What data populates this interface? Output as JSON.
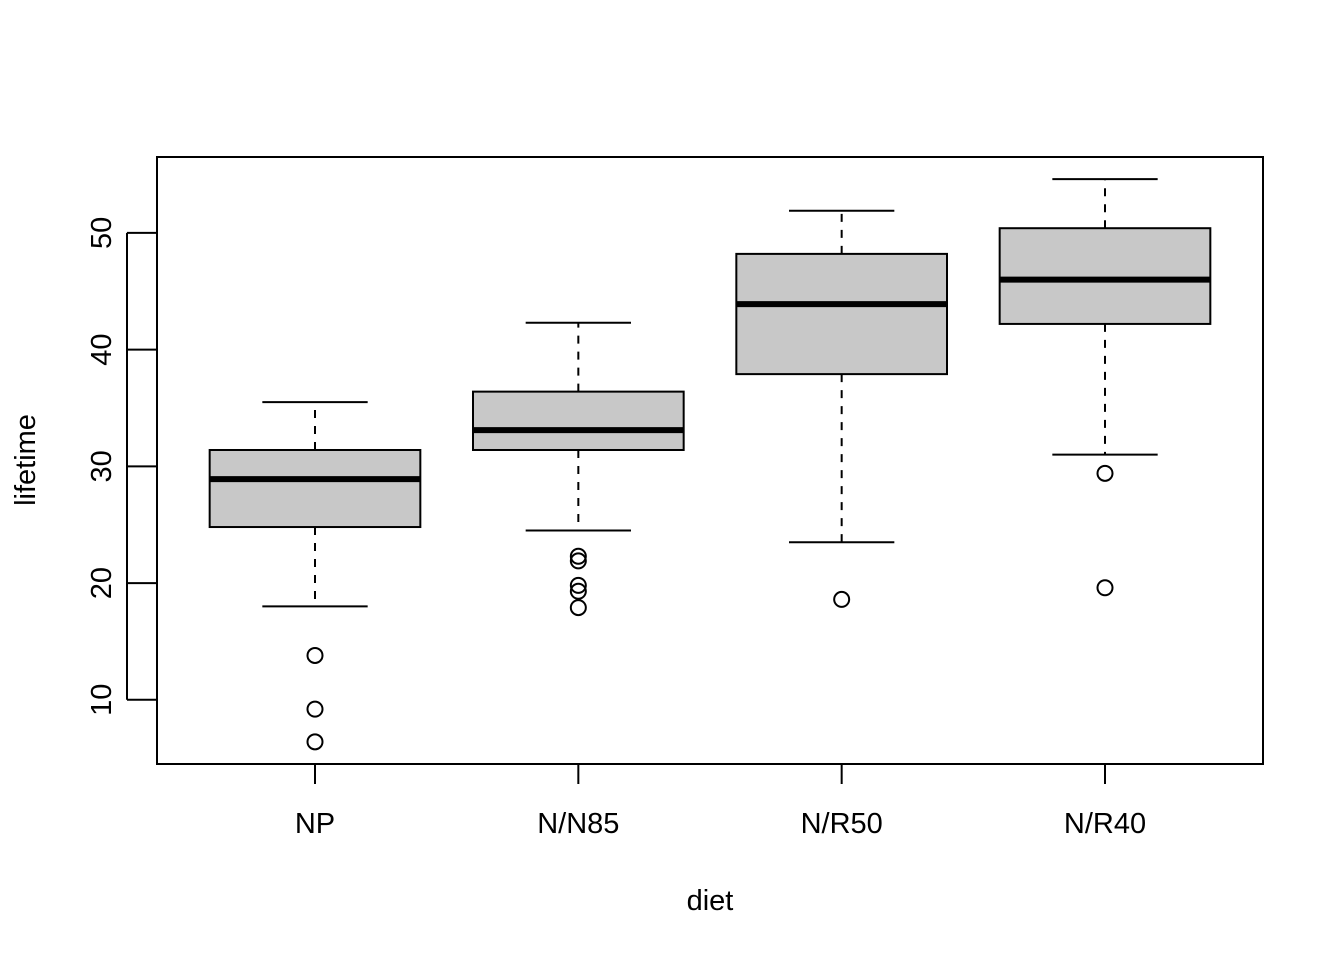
{
  "chart_data": {
    "type": "boxplot",
    "xlabel": "diet",
    "ylabel": "lifetime",
    "title": "",
    "ylim": [
      4.5,
      56.5
    ],
    "yticks": [
      10,
      20,
      30,
      40,
      50
    ],
    "categories": [
      "NP",
      "N/N85",
      "N/R50",
      "N/R40"
    ],
    "box_fill": "#c8c8c8",
    "boxes": [
      {
        "category": "NP",
        "whisker_low": 18.0,
        "q1": 24.8,
        "median": 28.9,
        "q3": 31.4,
        "whisker_high": 35.5,
        "outliers": [
          13.8,
          9.2,
          6.4
        ]
      },
      {
        "category": "N/N85",
        "whisker_low": 24.5,
        "q1": 31.4,
        "median": 33.1,
        "q3": 36.4,
        "whisker_high": 42.3,
        "outliers": [
          22.3,
          21.9,
          19.8,
          19.3,
          17.9
        ]
      },
      {
        "category": "N/R50",
        "whisker_low": 23.5,
        "q1": 37.9,
        "median": 43.9,
        "q3": 48.2,
        "whisker_high": 51.9,
        "outliers": [
          18.6
        ]
      },
      {
        "category": "N/R40",
        "whisker_low": 31.0,
        "q1": 42.2,
        "median": 46.0,
        "q3": 50.4,
        "whisker_high": 54.6,
        "outliers": [
          29.4,
          19.6
        ]
      }
    ]
  }
}
